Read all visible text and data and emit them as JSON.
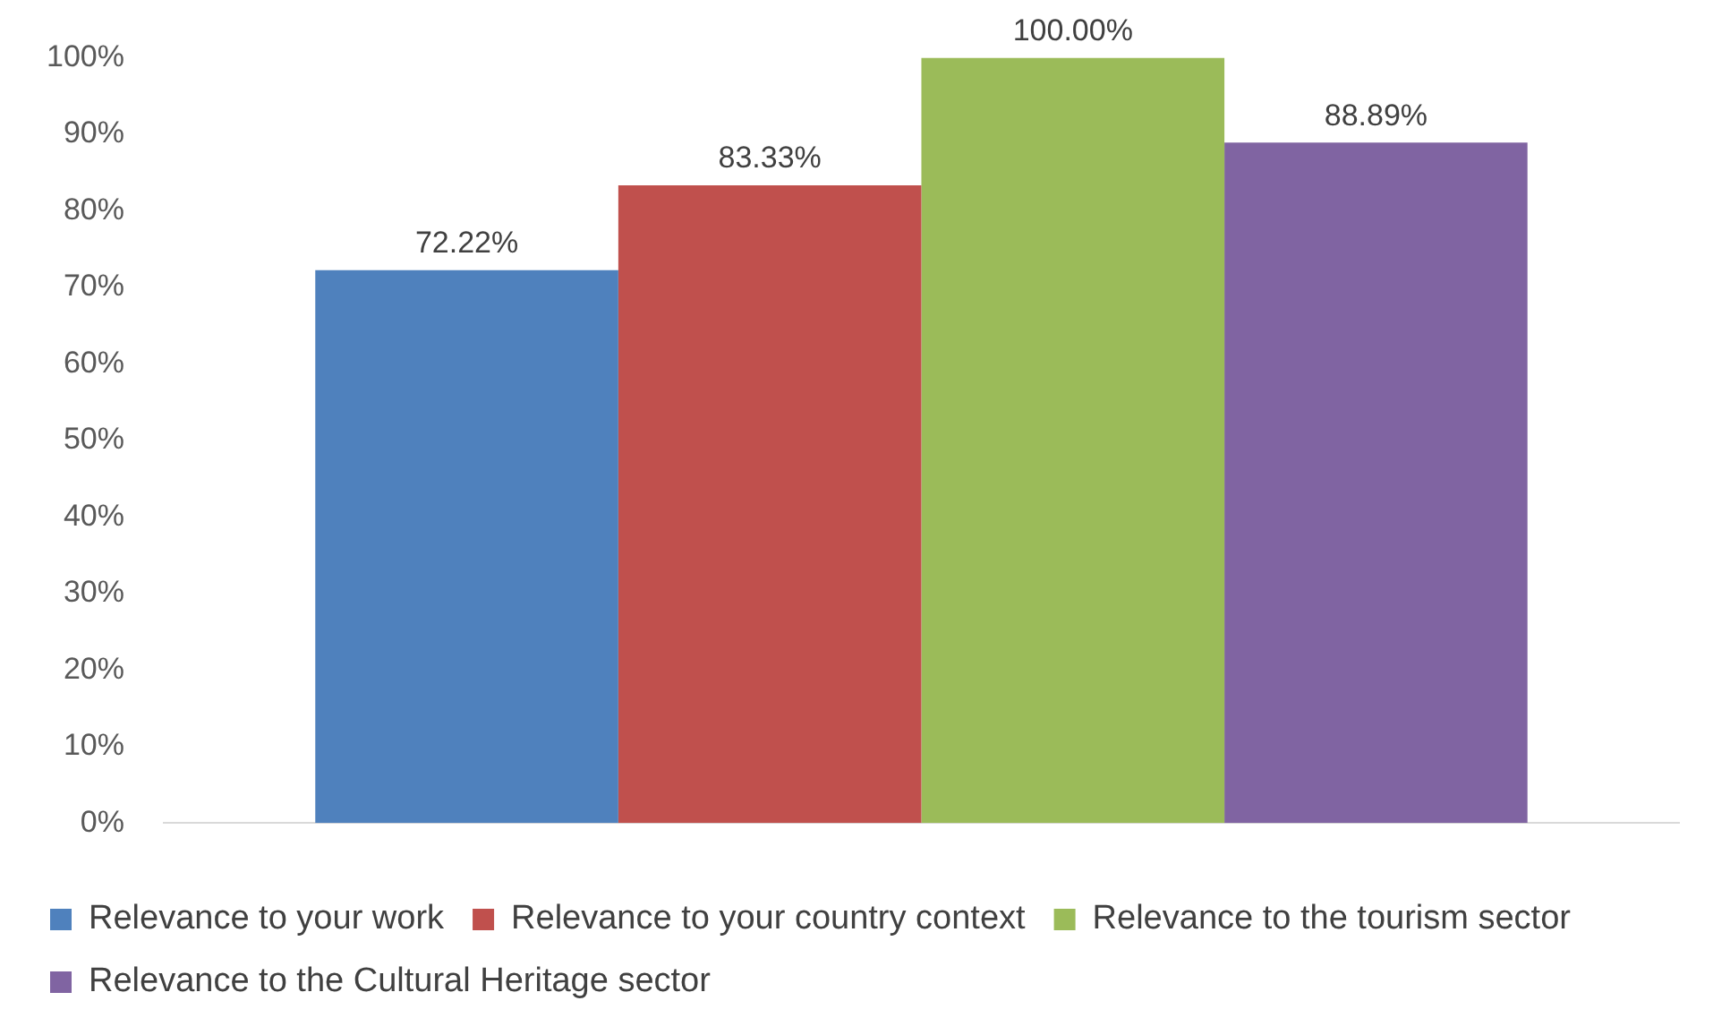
{
  "chart_data": {
    "type": "bar",
    "categories": [
      null
    ],
    "series": [
      {
        "name": "Relevance to your work",
        "color": "#4f81bd",
        "values": [
          72.22
        ],
        "value_labels": [
          "72.22%"
        ]
      },
      {
        "name": "Relevance to your country context",
        "color": "#c0504d",
        "values": [
          83.33
        ],
        "value_labels": [
          "83.33%"
        ]
      },
      {
        "name": "Relevance to the tourism sector",
        "color": "#9bbb59",
        "values": [
          100
        ],
        "value_labels": [
          "100.00%"
        ]
      },
      {
        "name": "Relevance to the Cultural Heritage sector",
        "color": "#8064a2",
        "values": [
          88.89
        ],
        "value_labels": [
          "88.89%"
        ]
      }
    ],
    "ylim": [
      0,
      100
    ],
    "yticks": [
      {
        "value": 0,
        "label": "0%"
      },
      {
        "value": 10,
        "label": "10%"
      },
      {
        "value": 20,
        "label": "20%"
      },
      {
        "value": 30,
        "label": "30%"
      },
      {
        "value": 40,
        "label": "40%"
      },
      {
        "value": 50,
        "label": "50%"
      },
      {
        "value": 60,
        "label": "60%"
      },
      {
        "value": 70,
        "label": "70%"
      },
      {
        "value": 80,
        "label": "80%"
      },
      {
        "value": 90,
        "label": "90%"
      },
      {
        "value": 100,
        "label": "100%"
      }
    ],
    "grid": false,
    "legend": "bottom"
  }
}
